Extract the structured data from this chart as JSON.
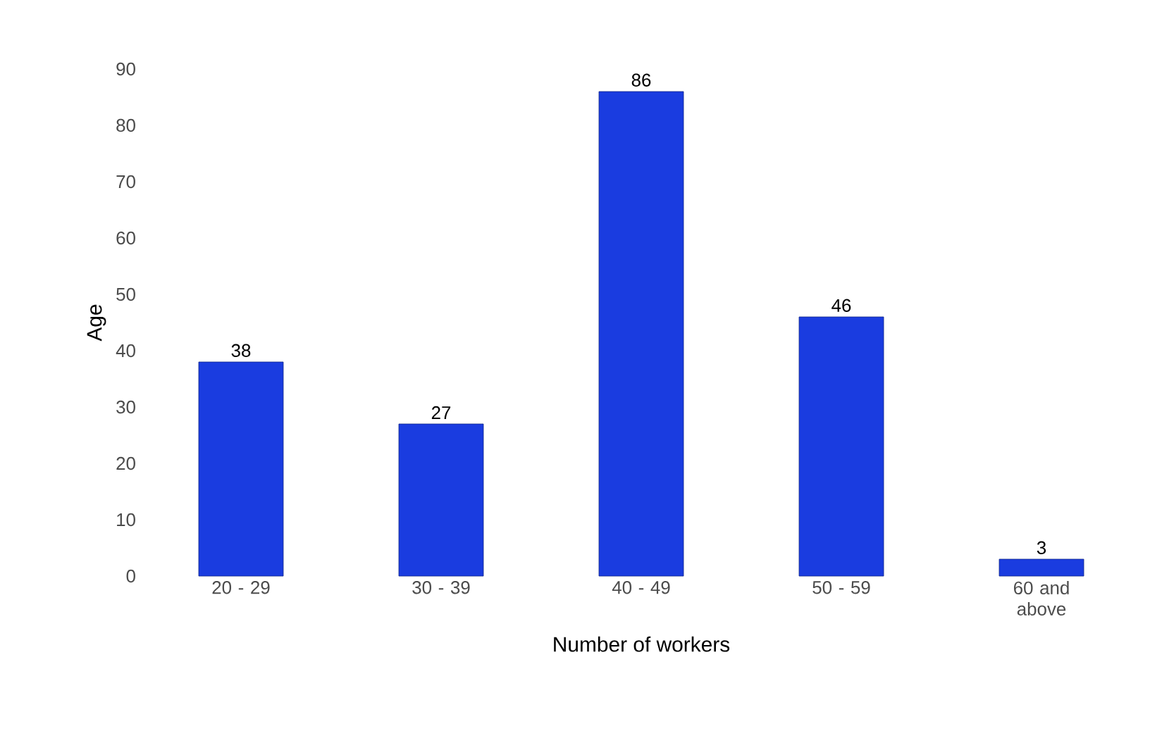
{
  "chart_data": {
    "type": "bar",
    "xlabel": "Number of workers",
    "ylabel": "Age",
    "categories": [
      "20 - 29",
      "30 - 39",
      "40 - 49",
      "50 - 59",
      "60 and above"
    ],
    "values": [
      38,
      27,
      86,
      46,
      3
    ],
    "color": "#1a3ce0",
    "data_labels": true,
    "grid": false,
    "ylim": [
      0,
      90
    ],
    "yticks": [
      0,
      10,
      20,
      30,
      40,
      50,
      60,
      70,
      80,
      90
    ]
  }
}
